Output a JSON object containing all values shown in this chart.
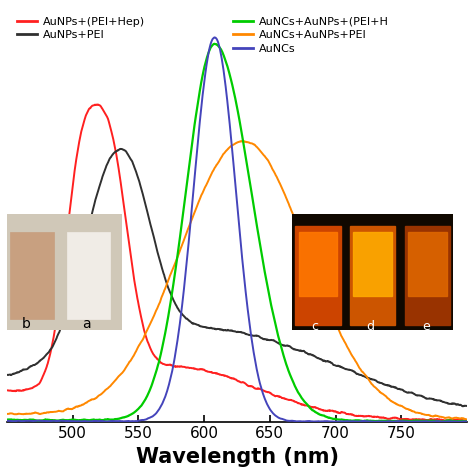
{
  "xlabel": "Wavelength (nm)",
  "xlabel_fontsize": 15,
  "x_min": 450,
  "x_max": 800,
  "y_min": 0,
  "y_max": 1.08,
  "background_color": "#ffffff",
  "legend_left": [
    {
      "label": "AuNPs+(PEI+Hep)",
      "color": "#ff2020"
    },
    {
      "label": "AuNPs+PEI",
      "color": "#303030"
    }
  ],
  "legend_right": [
    {
      "label": "AuNCs+AuNPs+(PEI+H",
      "color": "#00cc00"
    },
    {
      "label": "AuNCs+AuNPs+PEI",
      "color": "#ff8800"
    },
    {
      "label": "AuNCs",
      "color": "#4444bb"
    }
  ],
  "curve_colors": {
    "red": "#ff2020",
    "black": "#303030",
    "green": "#00cc00",
    "orange": "#ff8800",
    "blue": "#4444bb"
  },
  "xticks": [
    500,
    550,
    600,
    650,
    700,
    750
  ],
  "xtick_labels": [
    "500",
    "550",
    "600",
    "650",
    "700",
    "750"
  ]
}
